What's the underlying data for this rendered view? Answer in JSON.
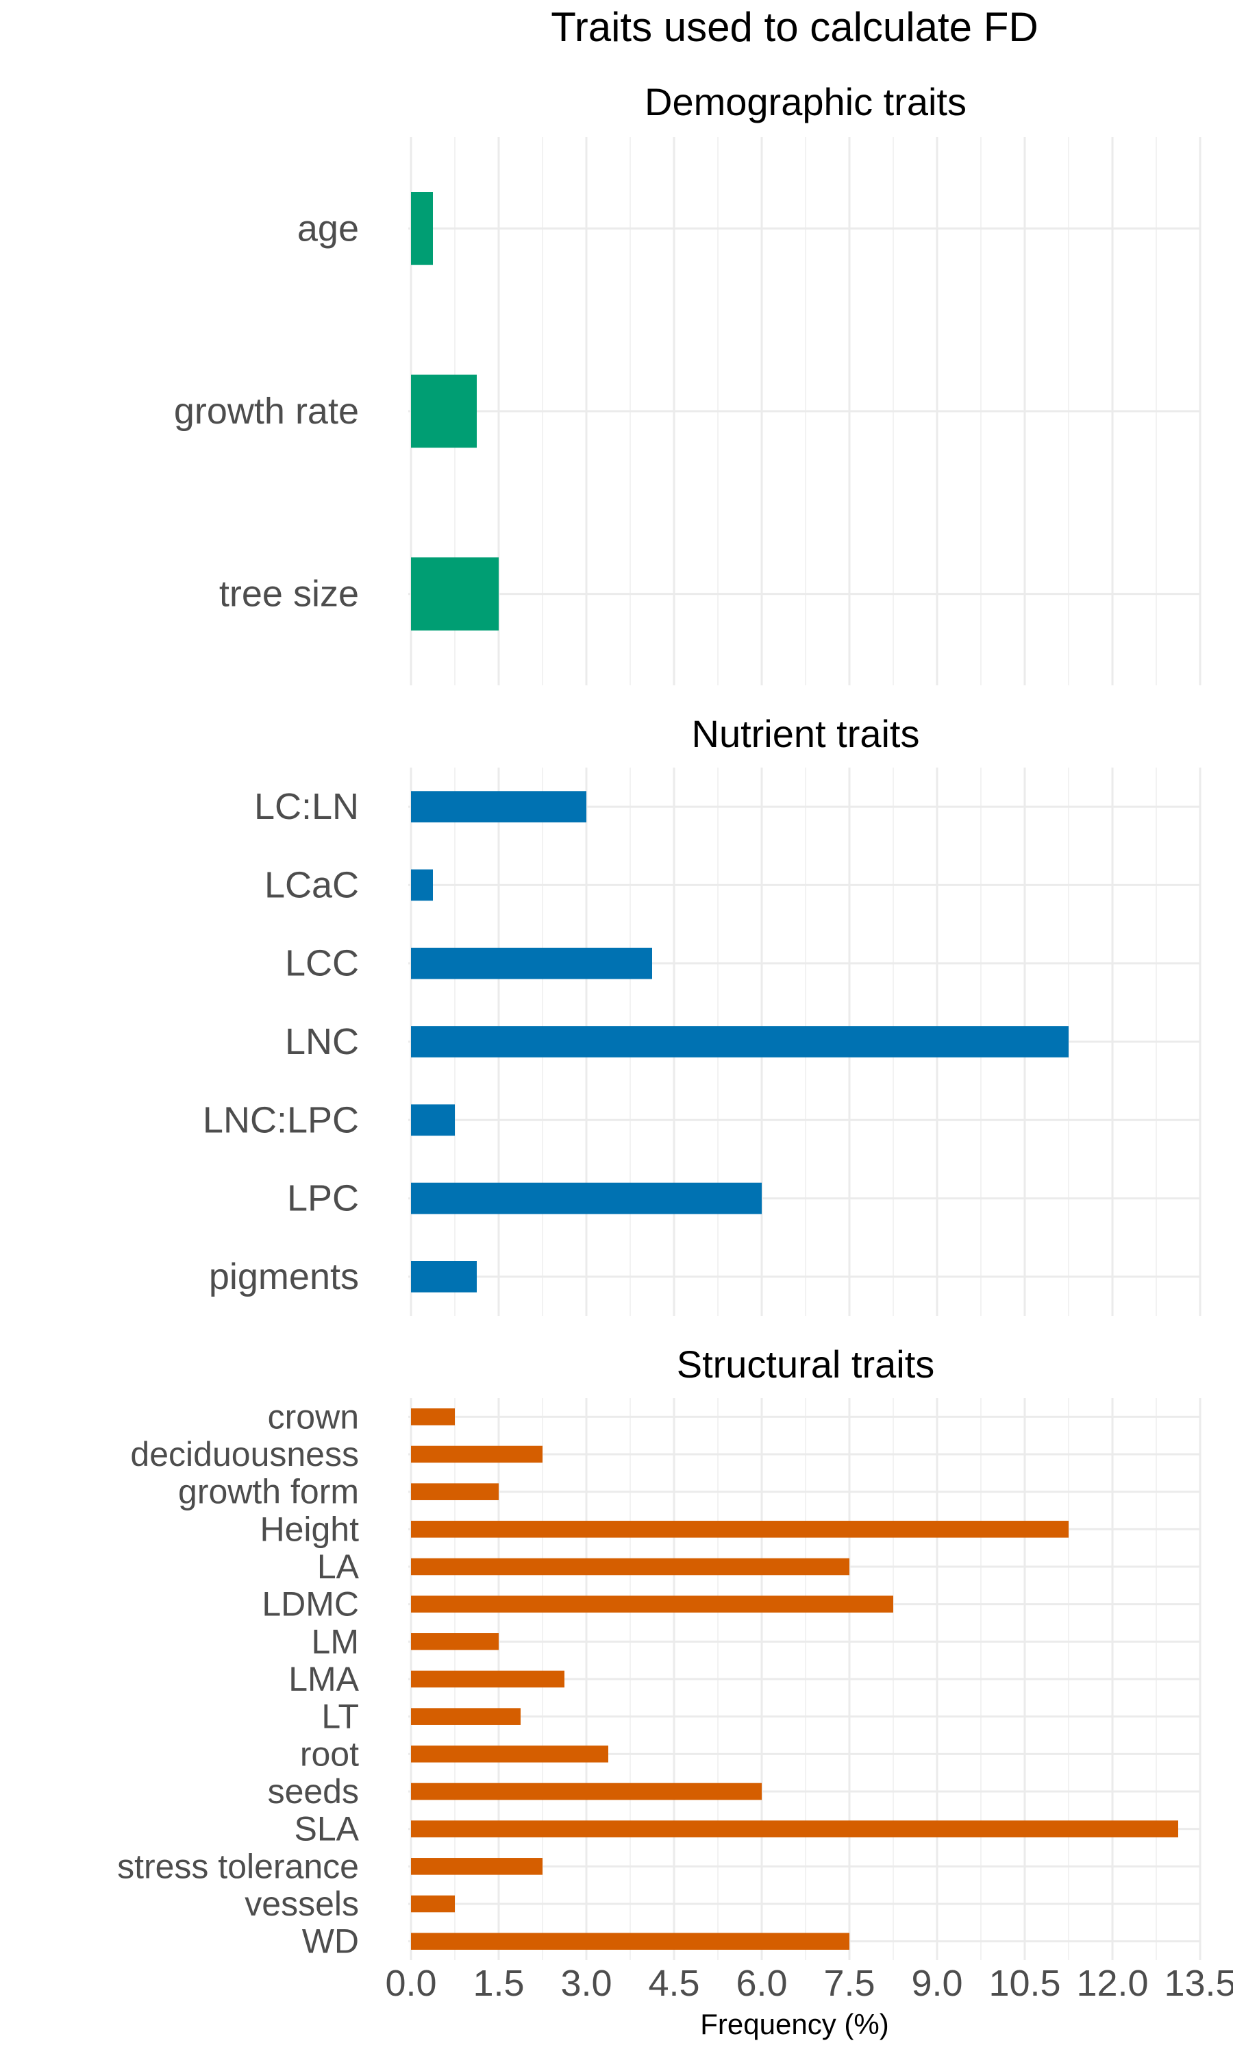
{
  "chart_data": {
    "type": "bar",
    "title": "Traits used to calculate FD",
    "xlabel": "Frequency (%)",
    "xlim": [
      0,
      13.5
    ],
    "x_ticks": [
      "0.0",
      "1.5",
      "3.0",
      "4.5",
      "6.0",
      "7.5",
      "9.0",
      "10.5",
      "12.0",
      "13.5"
    ],
    "grid": true,
    "panels": [
      {
        "name": "Demographic traits",
        "color": "#009E73",
        "categories": [
          "age",
          "growth rate",
          "tree size"
        ],
        "values": [
          0.375,
          1.125,
          1.5
        ]
      },
      {
        "name": "Nutrient traits",
        "color": "#0072B2",
        "categories": [
          "LC:LN",
          "LCaC",
          "LCC",
          "LNC",
          "LNC:LPC",
          "LPC",
          "pigments"
        ],
        "values": [
          3.0,
          0.375,
          4.125,
          11.25,
          0.75,
          6.0,
          1.125
        ]
      },
      {
        "name": "Structural traits",
        "color": "#D55E00",
        "categories": [
          "crown",
          "deciduousness",
          "growth form",
          "Height",
          "LA",
          "LDMC",
          "LM",
          "LMA",
          "LT",
          "root",
          "seeds",
          "SLA",
          "stress tolerance",
          "vessels",
          "WD"
        ],
        "values": [
          0.75,
          2.25,
          1.5,
          11.25,
          7.5,
          8.25,
          1.5,
          2.625,
          1.875,
          3.375,
          6.0,
          13.125,
          2.25,
          0.75,
          7.5
        ]
      }
    ]
  }
}
